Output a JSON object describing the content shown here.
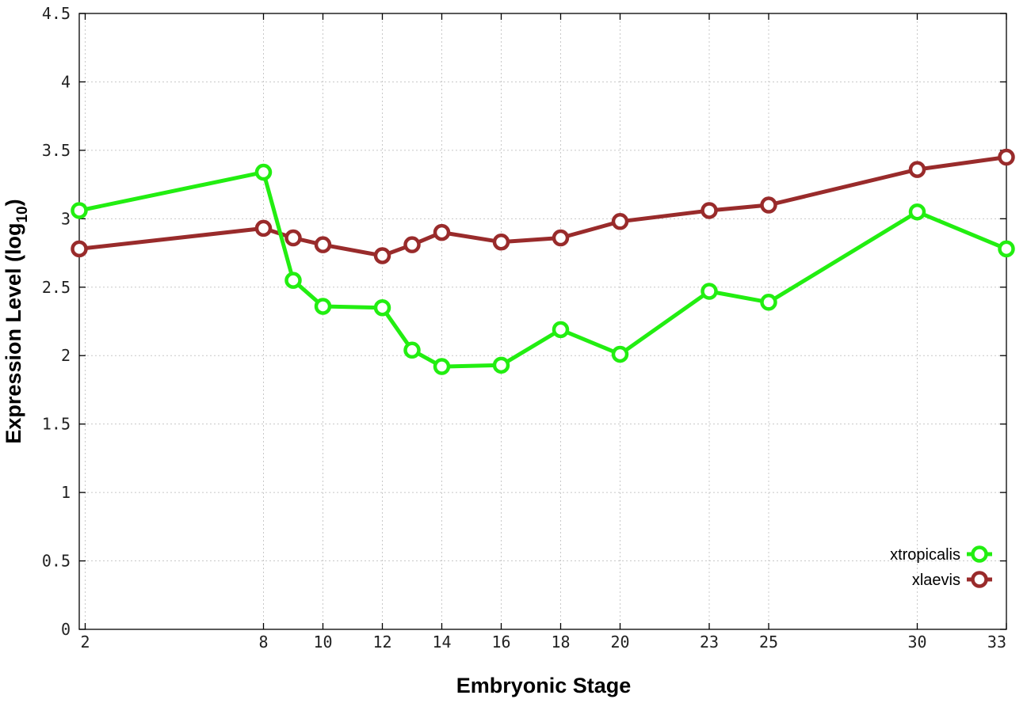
{
  "chart_data": {
    "type": "line",
    "xlabel": "Embryonic Stage",
    "ylabel_main": "Expression Level (log",
    "ylabel_sub": "10",
    "ylabel_close": ")",
    "xlim": [
      1.8,
      33
    ],
    "ylim": [
      0,
      4.5
    ],
    "x_ticks": [
      2,
      8,
      10,
      12,
      14,
      16,
      18,
      20,
      23,
      25,
      30,
      33
    ],
    "y_ticks": [
      0,
      0.5,
      1,
      1.5,
      2,
      2.5,
      3,
      3.5,
      4,
      4.5
    ],
    "y_tick_labels": [
      "0",
      "0.5",
      "1",
      "1.5",
      "2",
      "2.5",
      "3",
      "3.5",
      "4",
      "4.5"
    ],
    "grid": true,
    "legend_position": "bottom-right",
    "series": [
      {
        "name": "xtropicalis",
        "color": "#22ee11",
        "x": [
          1.8,
          8,
          9,
          10,
          12,
          13,
          14,
          16,
          18,
          20,
          23,
          25,
          30,
          33
        ],
        "y": [
          3.06,
          3.34,
          2.55,
          2.36,
          2.35,
          2.04,
          1.92,
          1.93,
          2.19,
          2.01,
          2.47,
          2.39,
          3.05,
          2.78
        ]
      },
      {
        "name": "xlaevis",
        "color": "#992b2b",
        "x": [
          1.8,
          8,
          9,
          10,
          12,
          13,
          14,
          16,
          18,
          20,
          23,
          25,
          30,
          33
        ],
        "y": [
          2.78,
          2.93,
          2.86,
          2.81,
          2.73,
          2.81,
          2.9,
          2.83,
          2.86,
          2.98,
          3.06,
          3.1,
          3.36,
          3.45
        ]
      }
    ]
  }
}
